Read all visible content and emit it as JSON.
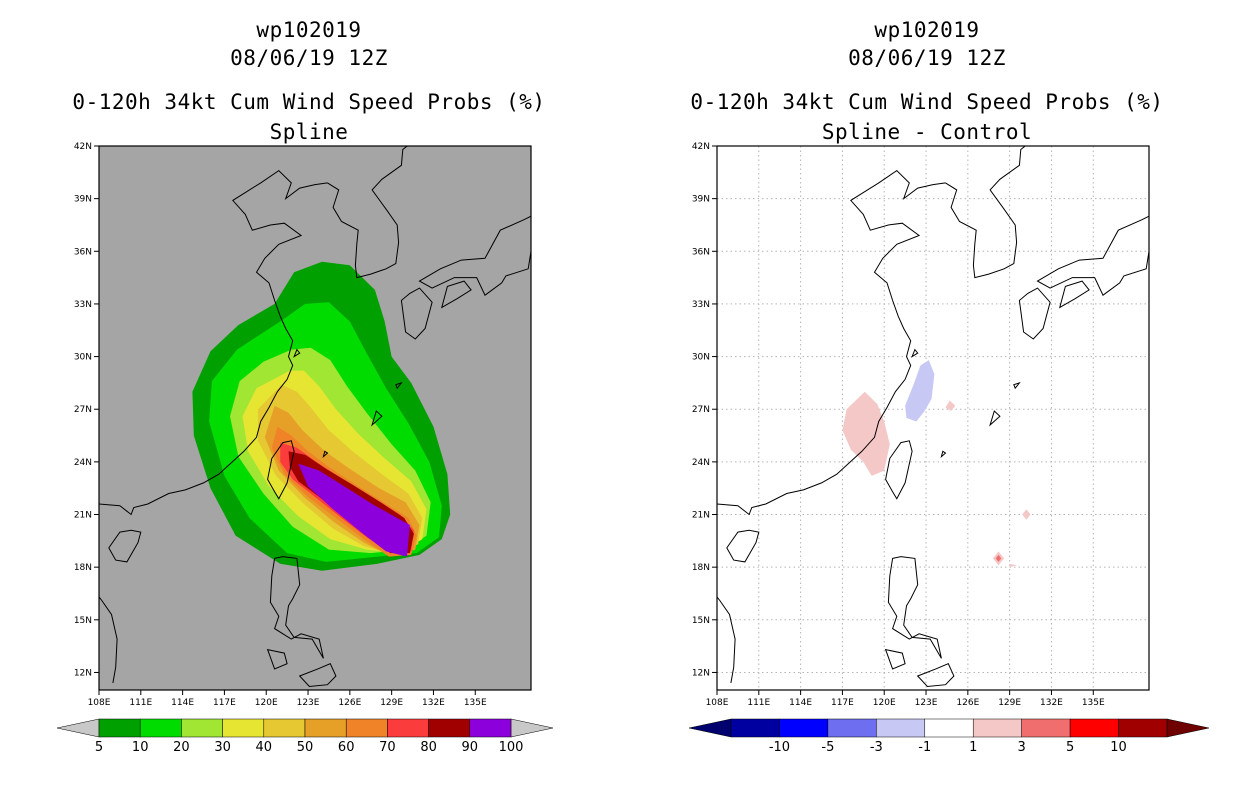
{
  "chart_data": [
    {
      "type": "heatmap",
      "storm_id": "wp102019",
      "datetime": "08/06/19 12Z",
      "title": "0-120h 34kt Cum Wind Speed Probs (%)",
      "subtitle": "Spline",
      "xlim": [
        108,
        139
      ],
      "ylim": [
        11,
        42
      ],
      "x_ticks": [
        "108E",
        "111E",
        "114E",
        "117E",
        "120E",
        "123E",
        "126E",
        "129E",
        "132E",
        "135E"
      ],
      "y_ticks": [
        "12N",
        "15N",
        "18N",
        "21N",
        "24N",
        "27N",
        "30N",
        "33N",
        "36N",
        "39N",
        "42N"
      ],
      "background": "#a5a5a5",
      "colorbar": {
        "labels": [
          "5",
          "10",
          "20",
          "30",
          "40",
          "50",
          "60",
          "70",
          "80",
          "90",
          "100"
        ],
        "colors": [
          "#00a000",
          "#00dc00",
          "#a0e632",
          "#e6e632",
          "#e6c832",
          "#e6a028",
          "#f08228",
          "#fa3c3c",
          "#a00000",
          "#8c00dc"
        ]
      },
      "contour_levels": [
        {
          "level": 5,
          "color": "#00a000"
        },
        {
          "level": 10,
          "color": "#00dc00"
        },
        {
          "level": 20,
          "color": "#a0e632"
        },
        {
          "level": 30,
          "color": "#e6e632"
        },
        {
          "level": 40,
          "color": "#e6c832"
        },
        {
          "level": 50,
          "color": "#e6a028"
        },
        {
          "level": 60,
          "color": "#f08228"
        },
        {
          "level": 70,
          "color": "#fa3c3c"
        },
        {
          "level": 80,
          "color": "#a00000"
        },
        {
          "level": 90,
          "color": "#8c00dc"
        }
      ]
    },
    {
      "type": "heatmap",
      "storm_id": "wp102019",
      "datetime": "08/06/19 12Z",
      "title": "0-120h 34kt Cum Wind Speed Probs (%)",
      "subtitle": "Spline - Control",
      "xlim": [
        108,
        139
      ],
      "ylim": [
        11,
        42
      ],
      "x_ticks": [
        "108E",
        "111E",
        "114E",
        "117E",
        "120E",
        "123E",
        "126E",
        "129E",
        "132E",
        "135E"
      ],
      "y_ticks": [
        "12N",
        "15N",
        "18N",
        "21N",
        "24N",
        "27N",
        "30N",
        "33N",
        "36N",
        "39N",
        "42N"
      ],
      "background": "#ffffff",
      "gridlines": true,
      "colorbar": {
        "labels": [
          "-10",
          "-5",
          "-3",
          "-1",
          "1",
          "3",
          "5",
          "10"
        ],
        "colors": [
          "#0000a0",
          "#0000ff",
          "#6e6ef0",
          "#c8c8f5",
          "#ffffff",
          "#f5c8c8",
          "#f06e6e",
          "#ff0000",
          "#a00000"
        ]
      },
      "difference_areas": [
        {
          "name": "negative",
          "value": -2,
          "color": "#c8c8f5"
        },
        {
          "name": "positive",
          "value": 2,
          "color": "#f5c8c8"
        },
        {
          "name": "positive-peak",
          "value": 4,
          "color": "#f06e6e"
        }
      ]
    }
  ]
}
